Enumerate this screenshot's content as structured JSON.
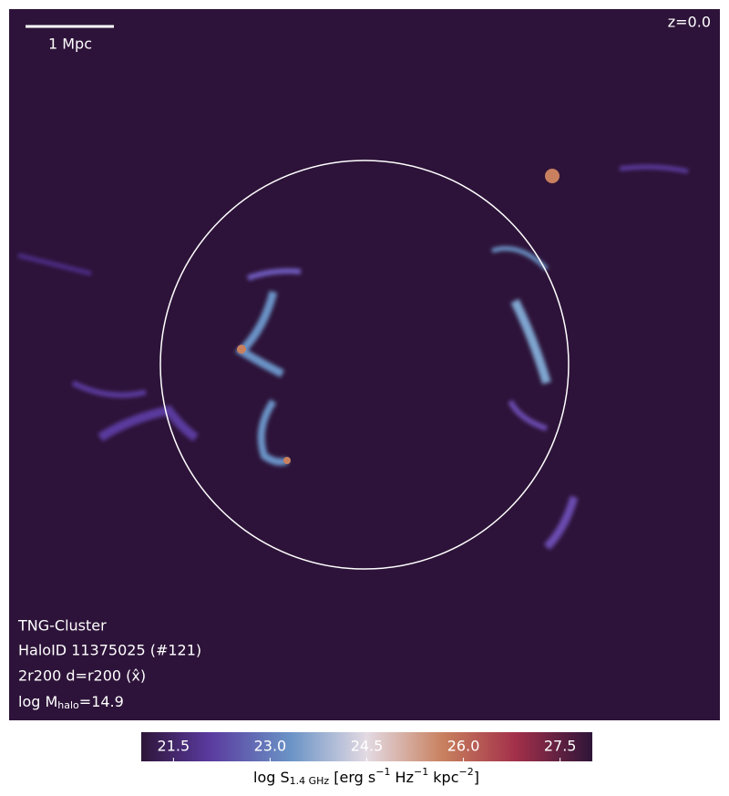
{
  "scale_bar": {
    "label": "1 Mpc"
  },
  "redshift": "z=0.0",
  "info": {
    "simulation": "TNG-Cluster",
    "halo": "HaloID 11375025 (#121)",
    "projection": "2r200 d=r200 (x̂)",
    "mass": {
      "prefix": "log M",
      "sub": "halo",
      "suffix": "=14.9"
    }
  },
  "colorbar": {
    "range": [
      21.0,
      28.0
    ],
    "ticks": [
      21.5,
      {
        "value": 23,
        "label": "23.0"
      },
      24.5,
      {
        "value": 26,
        "label": "26.0"
      },
      27.5
    ],
    "label": {
      "prefix": "log S",
      "sub": "1.4 GHz",
      "p1": " [erg s",
      "e1": "−1",
      "p2": " Hz",
      "e2": "−1",
      "p3": " kpc",
      "e3": "−2",
      "p4": "]"
    }
  }
}
